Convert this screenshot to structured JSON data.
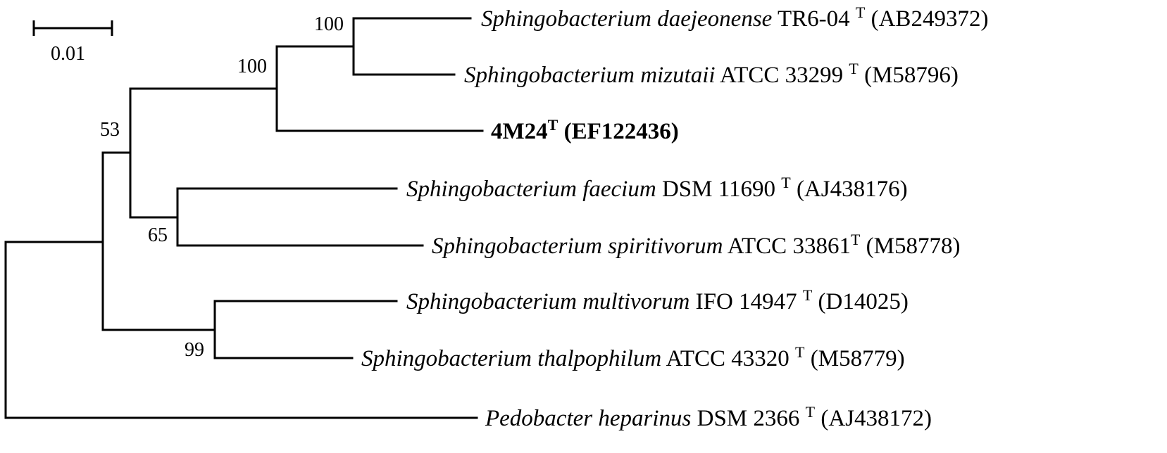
{
  "scale_bar": {
    "label": "0.01"
  },
  "leaves": [
    {
      "genus": "Sphingobacterium daejeonense",
      "strain": "TR6-04",
      "type_mark": "T",
      "accession": "(AB249372)",
      "bold": false
    },
    {
      "genus": "Sphingobacterium mizutaii",
      "strain": "ATCC 33299",
      "type_mark": "T",
      "accession": "(M58796)",
      "bold": false
    },
    {
      "genus": "",
      "strain": "4M24",
      "type_mark": "T",
      "accession": "(EF122436)",
      "bold": true
    },
    {
      "genus": "Sphingobacterium faecium",
      "strain": "DSM 11690",
      "type_mark": "T",
      "accession": "(AJ438176)",
      "bold": false
    },
    {
      "genus": "Sphingobacterium spiritivorum",
      "strain": "ATCC 33861",
      "type_mark": "T",
      "accession": "(M58778)",
      "bold": false
    },
    {
      "genus": "Sphingobacterium multivorum",
      "strain": "IFO 14947",
      "type_mark": "T",
      "accession": "(D14025)",
      "bold": false
    },
    {
      "genus": "Sphingobacterium thalpophilum",
      "strain": "ATCC 43320",
      "type_mark": "T",
      "accession": "(M58779)",
      "bold": false
    },
    {
      "genus": "Pedobacter heparinus",
      "strain": "DSM 2366",
      "type_mark": "T",
      "accession": "(AJ438172)",
      "bold": false
    }
  ],
  "bootstrap": [
    "100",
    "100",
    "53",
    "65",
    "99"
  ]
}
